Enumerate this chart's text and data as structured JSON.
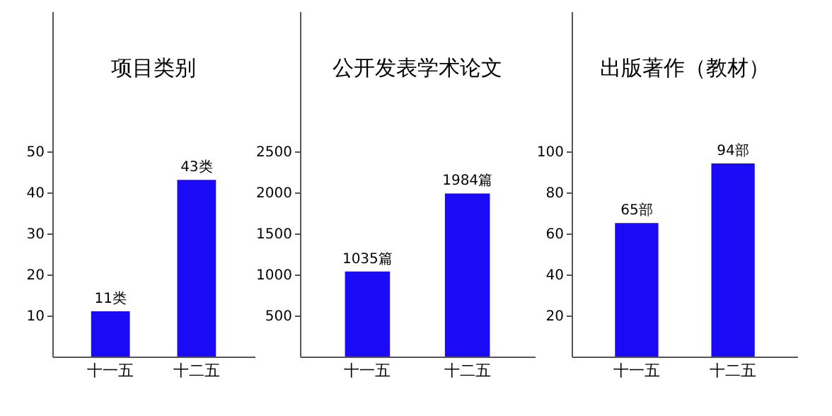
{
  "chart_data": [
    {
      "type": "bar",
      "title": "项目类别",
      "categories": [
        "十一五",
        "十二五"
      ],
      "series": [
        {
          "color": "#1a0af5",
          "values": [
            11,
            43
          ],
          "value_labels": [
            "11类",
            "43类"
          ]
        }
      ],
      "ylim": [
        0,
        84
      ],
      "yticks": [
        10,
        20,
        30,
        40,
        50
      ],
      "grid": false
    },
    {
      "type": "bar",
      "title": "公开发表学术论文",
      "categories": [
        "十一五",
        "十二五"
      ],
      "series": [
        {
          "color": "#1a0af5",
          "values": [
            1035,
            1984
          ],
          "value_labels": [
            "1035篇",
            "1984篇"
          ]
        }
      ],
      "ylim": [
        0,
        4200
      ],
      "yticks": [
        500,
        1000,
        1500,
        2000,
        2500
      ],
      "grid": false
    },
    {
      "type": "bar",
      "title": "出版著作（教材）",
      "categories": [
        "十一五",
        "十二五"
      ],
      "series": [
        {
          "color": "#1a0af5",
          "values": [
            65,
            94
          ],
          "value_labels": [
            "65部",
            "94部"
          ]
        }
      ],
      "ylim": [
        0,
        168
      ],
      "yticks": [
        20,
        40,
        60,
        80,
        100
      ],
      "grid": false
    }
  ]
}
